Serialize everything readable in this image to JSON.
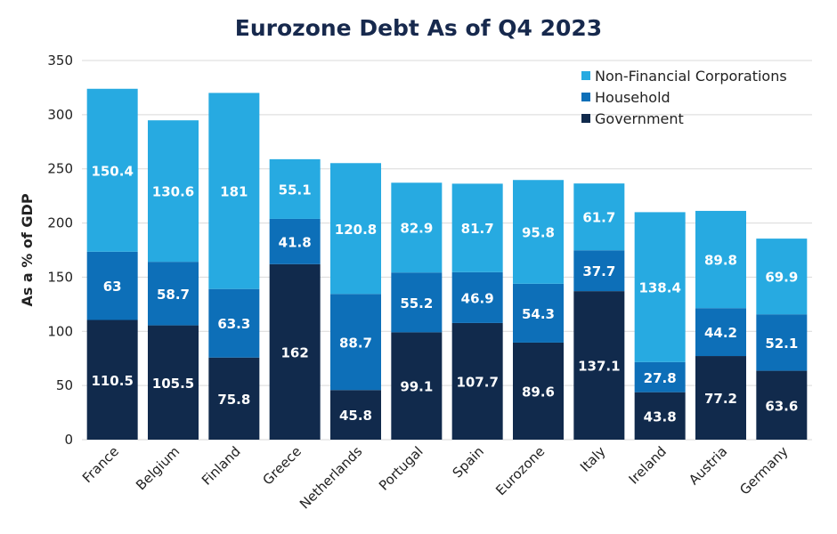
{
  "chart_data": {
    "type": "bar",
    "stacked": true,
    "title": "Eurozone Debt As of Q4 2023",
    "ylabel": "As a % of GDP",
    "xlabel": "",
    "ylim": [
      0,
      350
    ],
    "yticks": [
      0,
      50,
      100,
      150,
      200,
      250,
      300,
      350
    ],
    "grid": true,
    "legend_position": "top-right",
    "categories": [
      "France",
      "Belgium",
      "Finland",
      "Greece",
      "Netherlands",
      "Portugal",
      "Spain",
      "Eurozone",
      "Italy",
      "Ireland",
      "Austria",
      "Germany"
    ],
    "series": [
      {
        "name": "Government",
        "color": "#112a4c",
        "values": [
          110.5,
          105.5,
          75.8,
          162,
          45.8,
          99.1,
          107.7,
          89.6,
          137.1,
          43.8,
          77.2,
          63.6
        ]
      },
      {
        "name": "Household",
        "color": "#0d6fb8",
        "values": [
          63,
          58.7,
          63.3,
          41.8,
          88.7,
          55.2,
          46.9,
          54.3,
          37.7,
          27.8,
          44.2,
          52.1
        ]
      },
      {
        "name": "Non-Financial Corporations",
        "color": "#27aae1",
        "values": [
          150.4,
          130.6,
          181,
          55.1,
          120.8,
          82.9,
          81.7,
          95.8,
          61.7,
          138.4,
          89.8,
          69.9
        ]
      }
    ],
    "legend_order": [
      "Non-Financial Corporations",
      "Household",
      "Government"
    ]
  }
}
